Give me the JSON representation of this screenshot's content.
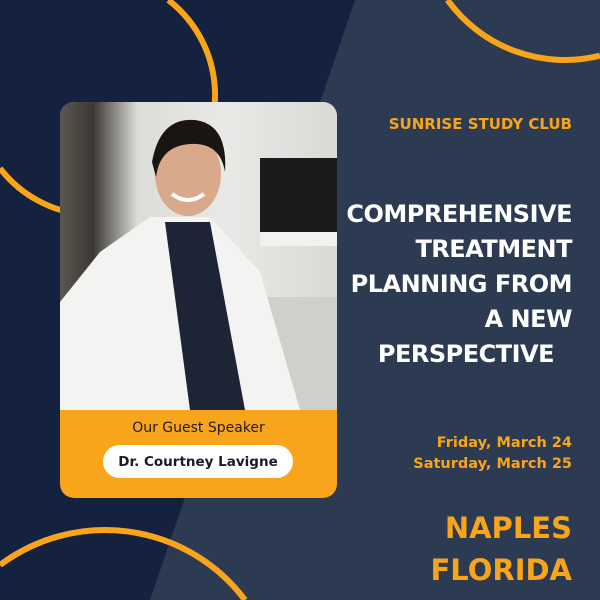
{
  "colors": {
    "accent": "#f8a51b",
    "navy": "#14213f",
    "panel": "#2c3b52"
  },
  "club": "SUNRISE STUDY CLUB",
  "title_lines": [
    "COMPREHENSIVE",
    "TREATMENT",
    "PLANNING FROM",
    "A NEW",
    "PERSPECTIVE"
  ],
  "speaker": {
    "label": "Our Guest Speaker",
    "name": "Dr. Courtney Lavigne"
  },
  "dates": [
    "Friday, March 24",
    "Saturday, March 25"
  ],
  "location": [
    "NAPLES",
    "FLORIDA"
  ]
}
